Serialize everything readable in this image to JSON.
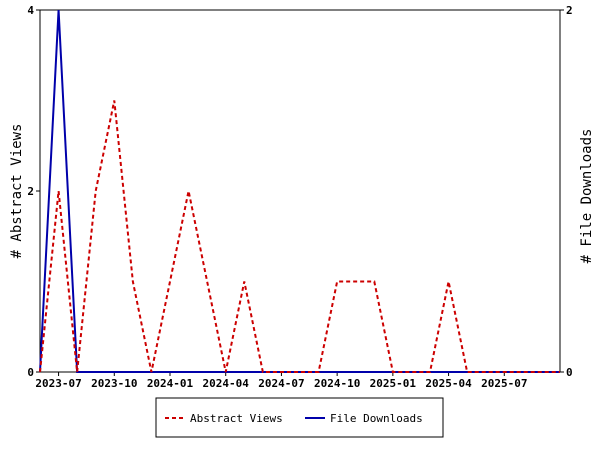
{
  "chart_data": {
    "type": "line",
    "title": "",
    "ylabel_left": "# Abstract Views",
    "ylabel_right": "# File Downloads",
    "x_tick_labels": [
      "2023-07",
      "2023-10",
      "2024-01",
      "2024-04",
      "2024-07",
      "2024-10",
      "2025-01",
      "2025-04",
      "2025-07"
    ],
    "left_ylim": [
      0,
      4
    ],
    "left_yticks": [
      0,
      2,
      4
    ],
    "right_ylim": [
      0,
      2
    ],
    "right_yticks": [
      0,
      2
    ],
    "x_months": [
      "2023-06",
      "2023-07",
      "2023-08",
      "2023-09",
      "2023-10",
      "2023-11",
      "2023-12",
      "2024-01",
      "2024-02",
      "2024-03",
      "2024-04",
      "2024-05",
      "2024-06",
      "2024-07",
      "2024-08",
      "2024-09",
      "2024-10",
      "2024-11",
      "2024-12",
      "2025-01",
      "2025-02",
      "2025-03",
      "2025-04",
      "2025-05",
      "2025-06",
      "2025-07",
      "2025-08",
      "2025-09",
      "2025-10"
    ],
    "series": [
      {
        "name": "Abstract Views",
        "axis": "left",
        "color": "#cc0000",
        "dash": true,
        "values": [
          0,
          2,
          0,
          2,
          3,
          1,
          0,
          1,
          2,
          1,
          0,
          1,
          0,
          0,
          0,
          0,
          1,
          1,
          1,
          0,
          0,
          0,
          1,
          0,
          0,
          0,
          0,
          0,
          0
        ]
      },
      {
        "name": "File Downloads",
        "axis": "right",
        "color": "#0000aa",
        "dash": false,
        "values": [
          0,
          2,
          0,
          0,
          0,
          0,
          0,
          0,
          0,
          0,
          0,
          0,
          0,
          0,
          0,
          0,
          0,
          0,
          0,
          0,
          0,
          0,
          0,
          0,
          0,
          0,
          0,
          0,
          0
        ]
      }
    ],
    "legend": {
      "position": "bottom-center",
      "entries": [
        "Abstract Views",
        "File Downloads"
      ]
    },
    "grid": false
  }
}
